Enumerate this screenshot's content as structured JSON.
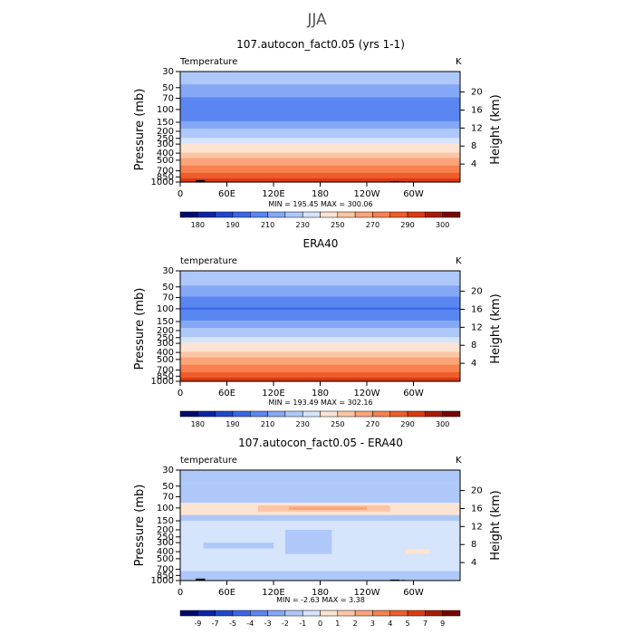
{
  "figure": {
    "title": "JJA"
  },
  "chart_data": [
    {
      "type": "heatmap",
      "title": "107.autocon_fact0.05 (yrs 1-1)",
      "variable": "Temperature",
      "units": "K",
      "xlabel": "",
      "ylabel": "Pressure (mb)",
      "y2label": "Height (km)",
      "x_ticks": [
        "0",
        "60E",
        "120E",
        "180",
        "120W",
        "60W"
      ],
      "x_tick_lons": [
        0,
        60,
        120,
        180,
        240,
        300
      ],
      "xlim": [
        0,
        360
      ],
      "y_ticks": [
        "30",
        "50",
        "70",
        "100",
        "150",
        "200",
        "250",
        "300",
        "400",
        "500",
        "700",
        "850",
        "1000"
      ],
      "y_tick_values": [
        30,
        50,
        70,
        100,
        150,
        200,
        250,
        300,
        400,
        500,
        700,
        850,
        1000
      ],
      "ylim": [
        1000,
        30
      ],
      "height_ticks": [
        "20",
        "16",
        "12",
        "8",
        "4"
      ],
      "height_tick_values": [
        20,
        16,
        12,
        8,
        4
      ],
      "stats": "MIN = 195.45   MAX = 300.06",
      "min": 195.45,
      "max": 300.06,
      "profile_levels": [
        30,
        50,
        70,
        80,
        100,
        120,
        150,
        200,
        250,
        300,
        400,
        500,
        600,
        700,
        850,
        1000
      ],
      "profile_values": [
        226,
        218,
        210,
        205,
        201,
        204,
        212,
        222,
        232,
        240,
        252,
        262,
        270,
        277,
        287,
        296
      ],
      "anomaly": [],
      "colorbar_levels": [
        175,
        180,
        185,
        190,
        200,
        210,
        220,
        230,
        240,
        250,
        260,
        270,
        280,
        290,
        300,
        305
      ],
      "colorbar_labels": [
        "180",
        "190",
        "210",
        "230",
        "250",
        "270",
        "290",
        "300"
      ],
      "colors": [
        "#020a6e",
        "#0a23a8",
        "#1f47d0",
        "#3a66e8",
        "#5a86f2",
        "#85a8f6",
        "#afc8fa",
        "#d6e4fc",
        "#fde4d2",
        "#fcc6a6",
        "#fba47a",
        "#f7814f",
        "#ef5d2c",
        "#dc3a12",
        "#a81b04",
        "#780600"
      ]
    },
    {
      "type": "heatmap",
      "title": "ERA40",
      "variable": "temperature",
      "units": "K",
      "xlabel": "",
      "ylabel": "Pressure (mb)",
      "y2label": "Height (km)",
      "x_ticks": [
        "0",
        "60E",
        "120E",
        "180",
        "120W",
        "60W"
      ],
      "x_tick_lons": [
        0,
        60,
        120,
        180,
        240,
        300
      ],
      "xlim": [
        0,
        360
      ],
      "y_ticks": [
        "30",
        "50",
        "70",
        "100",
        "150",
        "200",
        "250",
        "300",
        "400",
        "500",
        "700",
        "850",
        "1000"
      ],
      "y_tick_values": [
        30,
        50,
        70,
        100,
        150,
        200,
        250,
        300,
        400,
        500,
        700,
        850,
        1000
      ],
      "ylim": [
        1000,
        30
      ],
      "height_ticks": [
        "20",
        "16",
        "12",
        "8",
        "4"
      ],
      "height_tick_values": [
        20,
        16,
        12,
        8,
        4
      ],
      "stats": "MIN = 193.49   MAX = 302.16",
      "min": 193.49,
      "max": 302.16,
      "profile_levels": [
        30,
        50,
        70,
        80,
        100,
        120,
        150,
        200,
        250,
        300,
        400,
        500,
        600,
        700,
        850,
        1000
      ],
      "profile_values": [
        227,
        219,
        210,
        204,
        199,
        203,
        212,
        222,
        231,
        240,
        252,
        262,
        271,
        278,
        289,
        298
      ],
      "anomaly": [],
      "colorbar_levels": [
        175,
        180,
        185,
        190,
        200,
        210,
        220,
        230,
        240,
        250,
        260,
        270,
        280,
        290,
        300,
        305
      ],
      "colorbar_labels": [
        "180",
        "190",
        "210",
        "230",
        "250",
        "270",
        "290",
        "300"
      ],
      "colors": [
        "#020a6e",
        "#0a23a8",
        "#1f47d0",
        "#3a66e8",
        "#5a86f2",
        "#85a8f6",
        "#afc8fa",
        "#d6e4fc",
        "#fde4d2",
        "#fcc6a6",
        "#fba47a",
        "#f7814f",
        "#ef5d2c",
        "#dc3a12",
        "#a81b04",
        "#780600"
      ]
    },
    {
      "type": "heatmap",
      "title": "107.autocon_fact0.05 - ERA40",
      "variable": "temperature",
      "units": "K",
      "xlabel": "",
      "ylabel": "Pressure (mb)",
      "y2label": "Height (km)",
      "x_ticks": [
        "0",
        "60E",
        "120E",
        "180",
        "120W",
        "60W"
      ],
      "x_tick_lons": [
        0,
        60,
        120,
        180,
        240,
        300
      ],
      "xlim": [
        0,
        360
      ],
      "y_ticks": [
        "30",
        "50",
        "70",
        "100",
        "150",
        "200",
        "250",
        "300",
        "400",
        "500",
        "700",
        "850",
        "1000"
      ],
      "y_tick_values": [
        30,
        50,
        70,
        100,
        150,
        200,
        250,
        300,
        400,
        500,
        700,
        850,
        1000
      ],
      "ylim": [
        1000,
        30
      ],
      "height_ticks": [
        "20",
        "16",
        "12",
        "8",
        "4"
      ],
      "height_tick_values": [
        20,
        16,
        12,
        8,
        4
      ],
      "stats": "MIN =  -2.63   MAX =   3.38",
      "min": -2.63,
      "max": 3.38,
      "profile_levels": [],
      "profile_values": [],
      "anomaly": [
        {
          "lon": [
            0,
            360
          ],
          "p": [
            30,
            45
          ],
          "value": -1.5
        },
        {
          "lon": [
            0,
            360
          ],
          "p": [
            45,
            85
          ],
          "value": -1.5
        },
        {
          "lon": [
            0,
            360
          ],
          "p": [
            85,
            125
          ],
          "value": 0.5
        },
        {
          "lon": [
            100,
            270
          ],
          "p": [
            92,
            112
          ],
          "value": 1.5
        },
        {
          "lon": [
            140,
            240
          ],
          "p": [
            96,
            106
          ],
          "value": 2.5
        },
        {
          "lon": [
            0,
            360
          ],
          "p": [
            125,
            1000
          ],
          "value": -0.5
        },
        {
          "lon": [
            0,
            360
          ],
          "p": [
            125,
            150
          ],
          "value": -1.5
        },
        {
          "lon": [
            30,
            120
          ],
          "p": [
            300,
            360
          ],
          "value": -1.5
        },
        {
          "lon": [
            135,
            195
          ],
          "p": [
            200,
            430
          ],
          "value": -1.5
        },
        {
          "lon": [
            290,
            320
          ],
          "p": [
            370,
            430
          ],
          "value": 0.5
        },
        {
          "lon": [
            0,
            360
          ],
          "p": [
            740,
            1000
          ],
          "value": -1.5
        }
      ],
      "colorbar_levels": [
        -10,
        -9,
        -7,
        -5,
        -4,
        -3,
        -2,
        -1,
        0,
        1,
        2,
        3,
        4,
        5,
        7,
        9,
        10
      ],
      "colorbar_labels": [
        "-9",
        "-7",
        "-5",
        "-4",
        "-3",
        "-2",
        "-1",
        "0",
        "1",
        "2",
        "3",
        "4",
        "5",
        "7",
        "9"
      ],
      "colors": [
        "#020a6e",
        "#0a23a8",
        "#1f47d0",
        "#3a66e8",
        "#5a86f2",
        "#85a8f6",
        "#afc8fa",
        "#d6e4fc",
        "#fde4d2",
        "#fcc6a6",
        "#fba47a",
        "#f7814f",
        "#ef5d2c",
        "#dc3a12",
        "#a81b04",
        "#780600"
      ]
    }
  ],
  "topography": [
    {
      "lon": [
        5,
        25
      ],
      "p": [
        985,
        1000
      ]
    },
    {
      "lon": [
        20,
        32
      ],
      "p": [
        940,
        1000
      ]
    },
    {
      "lon": [
        270,
        282
      ],
      "p": [
        970,
        1000
      ]
    },
    {
      "lon": [
        284,
        290
      ],
      "p": [
        980,
        1000
      ]
    }
  ],
  "colors": {
    "topography": "#000000",
    "frame": "#000000"
  }
}
